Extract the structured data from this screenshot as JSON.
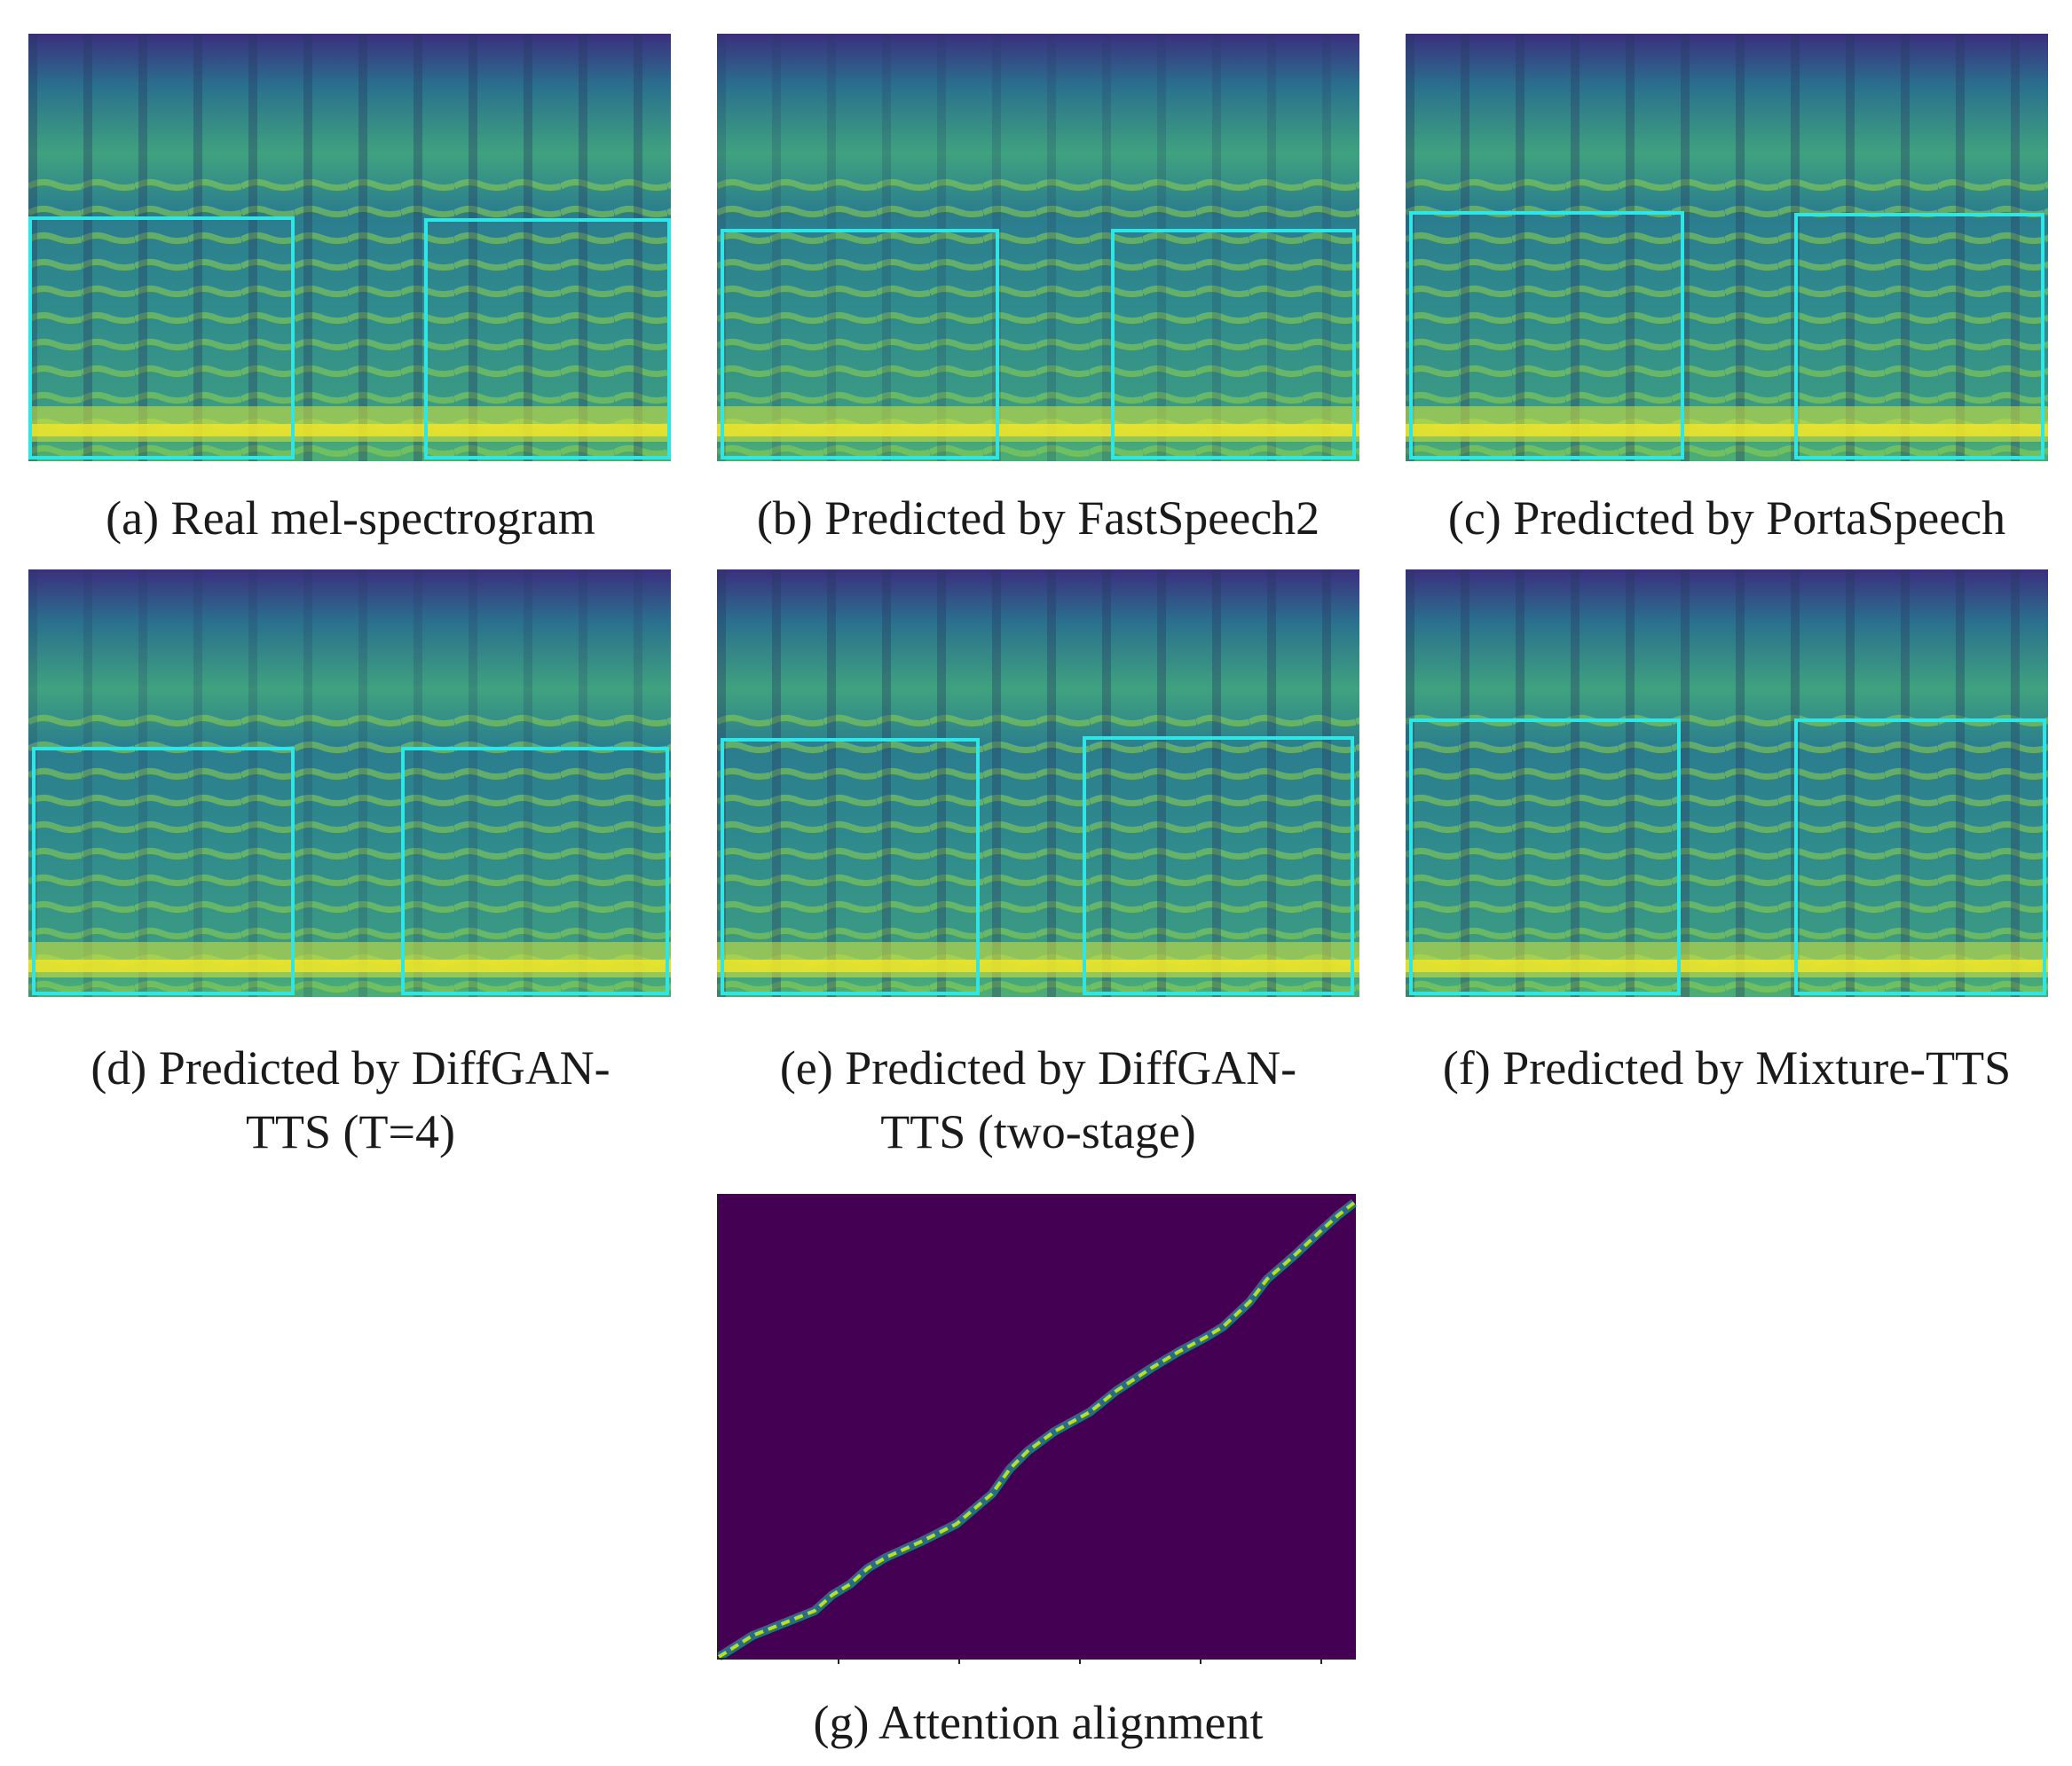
{
  "figure": {
    "panels": [
      {
        "id": "a",
        "caption": "(a) Real mel-spectrogram",
        "kind": "mel-spectrogram",
        "highlight_boxes": 2
      },
      {
        "id": "b",
        "caption": "(b) Predicted by FastSpeech2",
        "kind": "mel-spectrogram",
        "highlight_boxes": 2
      },
      {
        "id": "c",
        "caption": "(c) Predicted by PortaSpeech",
        "kind": "mel-spectrogram",
        "highlight_boxes": 2
      },
      {
        "id": "d",
        "caption_line1": "(d) Predicted by DiffGAN-",
        "caption_line2": "TTS (T=4)",
        "kind": "mel-spectrogram",
        "highlight_boxes": 2
      },
      {
        "id": "e",
        "caption_line1": "(e) Predicted by DiffGAN-",
        "caption_line2": "TTS (two-stage)",
        "kind": "mel-spectrogram",
        "highlight_boxes": 2
      },
      {
        "id": "f",
        "caption": "(f) Predicted by Mixture-TTS",
        "kind": "mel-spectrogram",
        "highlight_boxes": 2
      },
      {
        "id": "g",
        "caption": "(g) Attention alignment",
        "kind": "attention-alignment"
      }
    ],
    "colors": {
      "viridis_dark": "#440154",
      "viridis_mid": "#21918c",
      "viridis_light": "#5ec962",
      "viridis_yellow": "#fde725",
      "highlight_box": "#2ee6e6"
    }
  }
}
